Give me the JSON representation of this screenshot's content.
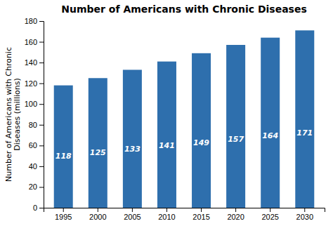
{
  "chart_data": {
    "type": "bar",
    "title": "Number of Americans with Chronic Diseases",
    "ylabel": "Number of Americans with Chronic\nDiseases (millions)",
    "categories": [
      "1995",
      "2000",
      "2005",
      "2010",
      "2015",
      "2020",
      "2025",
      "2030"
    ],
    "values": [
      118,
      125,
      133,
      141,
      149,
      157,
      164,
      171
    ],
    "color": "#2e6fad",
    "ylim": [
      0,
      180
    ],
    "yticks": [
      0,
      20,
      40,
      60,
      80,
      100,
      120,
      140,
      160,
      180
    ],
    "grid": false,
    "data_labels": true
  }
}
